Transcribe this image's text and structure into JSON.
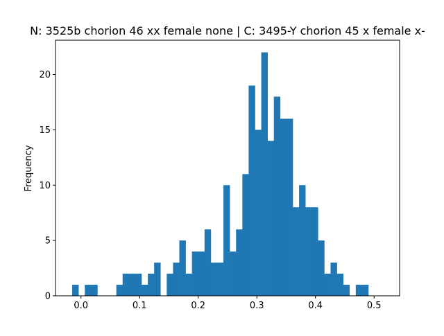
{
  "chart_data": {
    "type": "bar",
    "title": "N: 3525b chorion 46 xx female none | C: 3495-Y chorion 45 x female x-",
    "xlabel": "",
    "ylabel": "Frequency",
    "xlim": [
      -0.0435,
      0.5435
    ],
    "ylim": [
      0,
      23.1
    ],
    "xticks": [
      0.0,
      0.1,
      0.2,
      0.3,
      0.4,
      0.5
    ],
    "xtick_labels": [
      "0.0",
      "0.1",
      "0.2",
      "0.3",
      "0.4",
      "0.5"
    ],
    "yticks": [
      0,
      5,
      10,
      15,
      20
    ],
    "ytick_labels": [
      "0",
      "5",
      "10",
      "15",
      "20"
    ],
    "grid": false,
    "bin_start": -0.015,
    "bin_width": 0.01075,
    "counts": [
      1,
      0,
      1,
      1,
      0,
      0,
      0,
      1,
      2,
      2,
      2,
      1,
      2,
      3,
      0,
      2,
      3,
      5,
      2,
      4,
      4,
      6,
      3,
      3,
      10,
      4,
      6,
      11,
      19,
      15,
      22,
      14,
      18,
      16,
      16,
      8,
      10,
      8,
      8,
      5,
      2,
      3,
      2,
      1,
      0,
      1,
      1
    ],
    "bar_color": "#1f77b4"
  }
}
